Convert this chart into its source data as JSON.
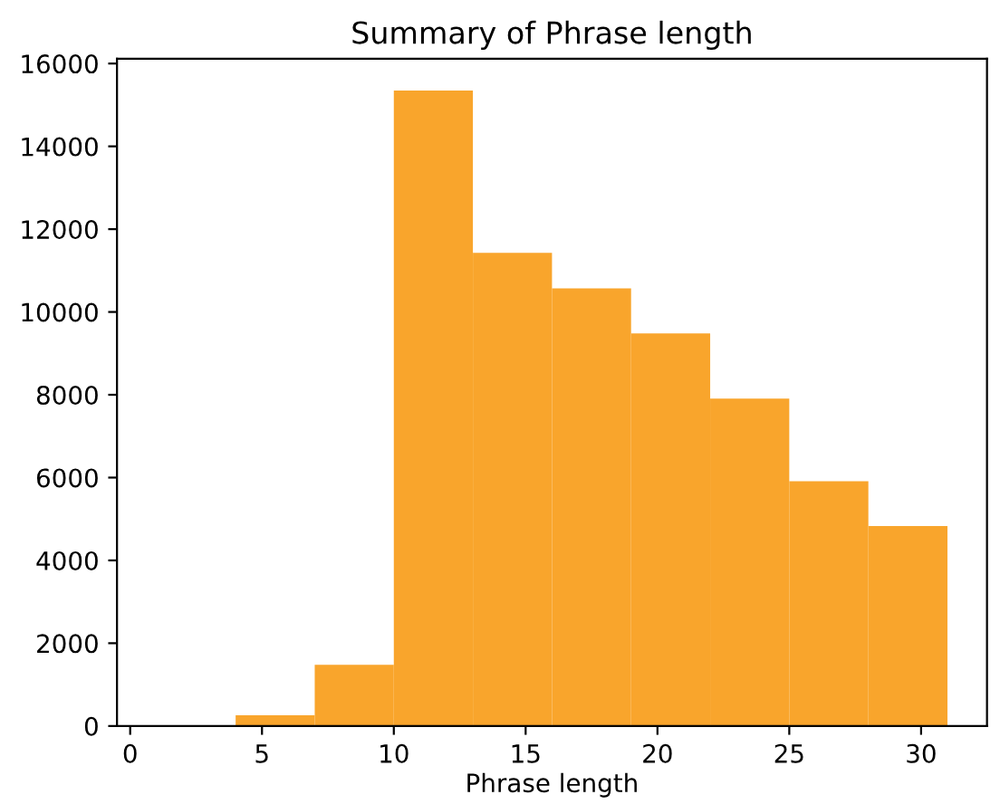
{
  "chart_data": {
    "type": "histogram",
    "title": "Summary of Phrase length",
    "xlabel": "Phrase length",
    "bins": [
      1,
      4,
      7,
      10,
      13,
      16,
      19,
      22,
      25,
      28,
      31
    ],
    "values": [
      0,
      260,
      1480,
      15350,
      11430,
      10570,
      9480,
      7910,
      5910,
      4830
    ],
    "color": "#f9a52c",
    "xlim": [
      -0.5,
      32.5
    ],
    "xticks": [
      0,
      5,
      10,
      15,
      20,
      25,
      30
    ],
    "ylim": [
      0,
      16117
    ],
    "yticks": [
      0,
      2000,
      4000,
      6000,
      8000,
      10000,
      12000,
      14000,
      16000
    ],
    "grid": false
  }
}
